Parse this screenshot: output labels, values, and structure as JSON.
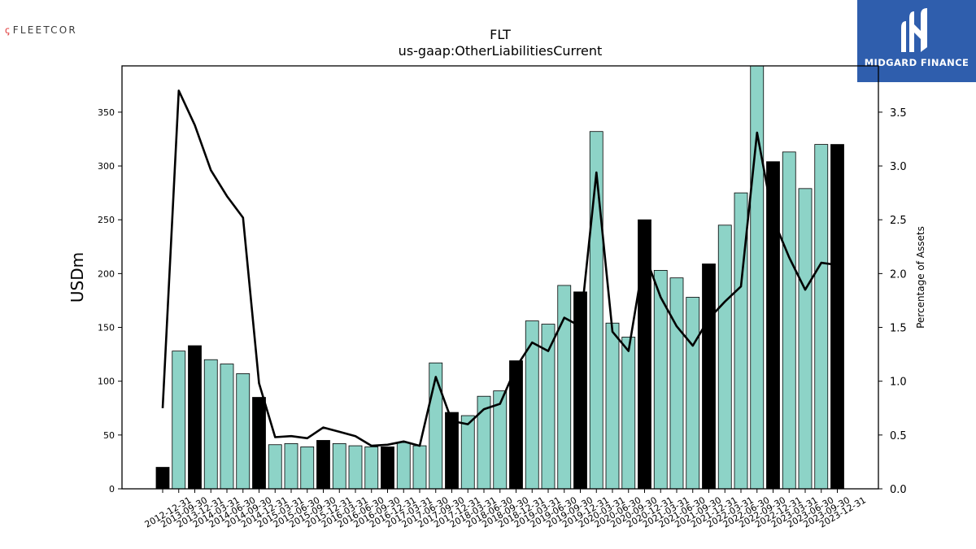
{
  "header": {
    "logo_left": "FLEETCOR",
    "logo_right": "MIDGARD FINANCE"
  },
  "chart_data": {
    "type": "bar",
    "title": "FLT",
    "subtitle": "us-gaap:OtherLiabilitiesCurrent",
    "ylabel": "USDm",
    "y2label": "Percentage of Assets",
    "ylim": [
      0,
      393
    ],
    "y2lim": [
      0,
      3.93
    ],
    "yticks": [
      0,
      50,
      100,
      150,
      200,
      250,
      300,
      350
    ],
    "y2ticks": [
      "0.0",
      "0.5",
      "1.0",
      "1.5",
      "2.0",
      "2.5",
      "3.0",
      "3.5"
    ],
    "grid": false,
    "categories": [
      "2012-12-31",
      "2013-09-30",
      "2013-12-31",
      "2014-03-31",
      "2014-06-30",
      "2014-09-30",
      "2014-12-31",
      "2015-03-31",
      "2015-06-30",
      "2015-09-30",
      "2015-12-31",
      "2016-03-31",
      "2016-06-30",
      "2016-09-30",
      "2016-12-31",
      "2017-03-31",
      "2017-06-30",
      "2017-09-30",
      "2017-12-31",
      "2018-03-31",
      "2018-06-30",
      "2018-09-30",
      "2018-12-31",
      "2019-03-31",
      "2019-06-30",
      "2019-09-30",
      "2019-12-31",
      "2020-03-31",
      "2020-06-30",
      "2020-09-30",
      "2020-12-31",
      "2021-03-31",
      "2021-06-30",
      "2021-09-30",
      "2021-12-31",
      "2022-03-31",
      "2022-06-30",
      "2022-09-30",
      "2022-12-31",
      "2023-03-31",
      "2023-06-30",
      "2023-09-30",
      "2023-12-31"
    ],
    "series": [
      {
        "kind": "bar",
        "values": [
          20,
          128,
          133,
          120,
          116,
          107,
          85,
          41,
          42,
          39,
          45,
          42,
          40,
          39,
          39,
          43,
          40,
          117,
          71,
          68,
          86,
          91,
          119,
          156,
          153,
          189,
          183,
          332,
          154,
          141,
          250,
          203,
          196,
          178,
          209,
          245,
          275,
          395,
          304,
          313,
          279,
          320,
          320
        ],
        "fiscal_year_end": [
          true,
          false,
          true,
          false,
          false,
          false,
          true,
          false,
          false,
          false,
          true,
          false,
          false,
          false,
          true,
          false,
          false,
          false,
          true,
          false,
          false,
          false,
          true,
          false,
          false,
          false,
          true,
          false,
          false,
          false,
          true,
          false,
          false,
          false,
          true,
          false,
          false,
          false,
          true,
          false,
          false,
          false,
          true
        ],
        "colors": {
          "quarter": "#8dd3c7",
          "year_end": "#000000"
        }
      },
      {
        "kind": "line",
        "axis": "right",
        "color": "#000000",
        "values": [
          0.75,
          3.7,
          3.38,
          2.96,
          2.72,
          2.52,
          0.98,
          0.48,
          0.49,
          0.47,
          0.57,
          0.53,
          0.49,
          0.4,
          0.41,
          0.44,
          0.4,
          1.04,
          0.63,
          0.6,
          0.74,
          0.79,
          1.13,
          1.36,
          1.28,
          1.59,
          1.51,
          2.94,
          1.46,
          1.28,
          2.18,
          1.78,
          1.51,
          1.33,
          1.58,
          1.74,
          1.88,
          3.31,
          2.51,
          2.15,
          1.85,
          2.1,
          2.08
        ]
      }
    ]
  }
}
